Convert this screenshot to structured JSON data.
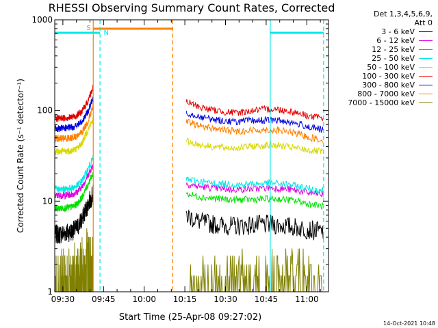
{
  "chart_data": {
    "type": "line",
    "title": "RHESSI Observing Summary Count Rates, Corrected",
    "xlabel": "Start Time (25-Apr-08 09:27:02)",
    "ylabel": "Corrected Count Rate (s⁻¹ detector⁻¹)",
    "x_ticks": [
      "09:30",
      "09:45",
      "10:00",
      "10:15",
      "10:30",
      "10:45",
      "11:00"
    ],
    "y_ticks": [
      "1",
      "10",
      "100",
      "1000"
    ],
    "xlim_min": [
      27,
      128
    ],
    "ylim": [
      1,
      1000
    ],
    "y_scale": "log",
    "legend_header": [
      "Det 1,3,4,5,6,9,",
      "Att 0"
    ],
    "legend_position": "top-right",
    "series": [
      {
        "name": "3 - 6 keV",
        "color": "#000000",
        "seg1": [
          4.3,
          4.3,
          4.5,
          4.6,
          5.0,
          6.3,
          9.0,
          12.0
        ],
        "seg2": [
          7.0,
          6.0,
          5.6,
          5.4,
          5.3,
          5.4,
          5.5,
          5.5,
          5.3,
          5.1,
          4.8,
          4.6
        ]
      },
      {
        "name": "6 - 12 keV",
        "color": "#e000e0",
        "seg1": [
          11.5,
          11.5,
          11.6,
          11.8,
          12.5,
          14.5,
          19.0,
          25.0
        ],
        "seg2": [
          15.5,
          14.5,
          14.0,
          13.6,
          13.5,
          13.6,
          13.8,
          14.0,
          13.6,
          13.0,
          12.2,
          11.8
        ]
      },
      {
        "name": "12 - 25 keV",
        "color": "#00e000",
        "seg1": [
          8.3,
          8.3,
          8.4,
          8.6,
          9.2,
          11.0,
          15.0,
          20.0
        ],
        "seg2": [
          12.0,
          11.2,
          10.8,
          10.5,
          10.3,
          10.4,
          10.5,
          10.6,
          10.4,
          10.0,
          9.2,
          8.8
        ]
      },
      {
        "name": "25 - 50 keV",
        "color": "#00e8e8",
        "seg1": [
          13.5,
          13.5,
          13.6,
          13.9,
          14.7,
          17.0,
          22.0,
          30.0
        ],
        "seg2": [
          17.5,
          16.5,
          15.8,
          15.4,
          15.2,
          15.4,
          15.6,
          15.8,
          15.4,
          14.6,
          13.6,
          13.2
        ]
      },
      {
        "name": "50 - 100 keV",
        "color": "#d8d800",
        "seg1": [
          35.0,
          35.0,
          35.5,
          36.0,
          38.0,
          44.0,
          60.0,
          80.0
        ],
        "seg2": [
          46.0,
          42.0,
          40.0,
          39.0,
          38.5,
          40.0,
          41.0,
          41.5,
          40.0,
          38.0,
          36.0,
          35.0
        ]
      },
      {
        "name": "100 - 300 keV",
        "color": "#e00000",
        "seg1": [
          82.0,
          82.0,
          83.0,
          84.0,
          88.0,
          98.0,
          125.0,
          180.0
        ],
        "seg2": [
          125.0,
          110.0,
          102.0,
          97.0,
          94.0,
          98.0,
          102.0,
          104.0,
          100.0,
          94.0,
          86.0,
          82.0
        ]
      },
      {
        "name": "300 - 800 keV",
        "color": "#0000e0",
        "seg1": [
          63.0,
          63.0,
          64.0,
          65.0,
          68.0,
          76.0,
          96.0,
          135.0
        ],
        "seg2": [
          95.0,
          86.0,
          80.0,
          77.0,
          75.0,
          77.0,
          78.0,
          78.0,
          76.0,
          71.0,
          65.0,
          61.0
        ]
      },
      {
        "name": "800 - 7000 keV",
        "color": "#ff8000",
        "seg1": [
          49.0,
          49.0,
          49.5,
          50.0,
          52.0,
          58.0,
          74.0,
          110.0
        ],
        "seg2": [
          75.0,
          68.0,
          64.0,
          61.0,
          59.0,
          60.0,
          61.0,
          61.0,
          59.0,
          55.0,
          50.0,
          47.0
        ]
      },
      {
        "name": "7000 - 15000 keV",
        "color": "#808000",
        "seg1": [
          1.5,
          1.6,
          1.7,
          1.8,
          1.9,
          2.3,
          2.8,
          3.5
        ],
        "seg2": [
          1.4,
          1.5,
          1.6,
          1.6,
          1.6,
          1.5,
          1.6,
          1.9,
          2.0,
          1.8,
          1.4,
          1.3
        ]
      }
    ],
    "annotations": [
      {
        "label": "S",
        "color": "#ff8000"
      },
      {
        "label": "N",
        "color": "#00e8e8"
      }
    ]
  },
  "footer": {
    "timestamp": "14-Oct-2021 10:48"
  }
}
